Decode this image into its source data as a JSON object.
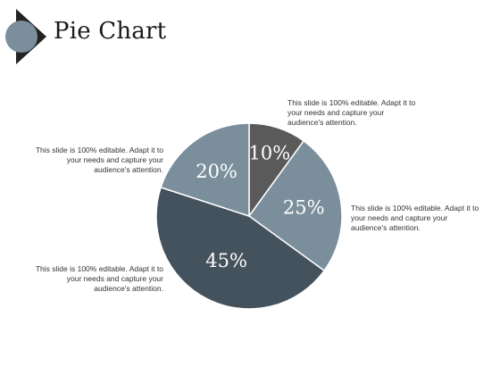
{
  "header": {
    "title": "Pie Chart",
    "icon": "circle-arrow-icon"
  },
  "colors": {
    "dark_gray": "#5a5a5a",
    "steel_light": "#7a8e9b",
    "steel_dark": "#44525e",
    "circle": "#7a8e9b",
    "triangle": "#222222"
  },
  "captions": {
    "top": "This slide is 100% editable. Adapt it to your needs and capture your audience's attention.",
    "right": "This slide is 100% editable. Adapt it to your needs and capture your audience's attention.",
    "left_top": "This slide is 100% editable. Adapt it to your needs and capture your audience's attention.",
    "left_bottom": "This slide is 100% editable. Adapt it to your needs and capture your audience's attention."
  },
  "chart_data": {
    "type": "pie",
    "title": "Pie Chart",
    "start_angle_deg": 0,
    "direction": "clockwise",
    "slices": [
      {
        "label": "10%",
        "value": 10,
        "color": "#5a5a5a"
      },
      {
        "label": "25%",
        "value": 25,
        "color": "#7a8e9b"
      },
      {
        "label": "45%",
        "value": 45,
        "color": "#44525e"
      },
      {
        "label": "20%",
        "value": 20,
        "color": "#7a8e9b"
      }
    ]
  }
}
